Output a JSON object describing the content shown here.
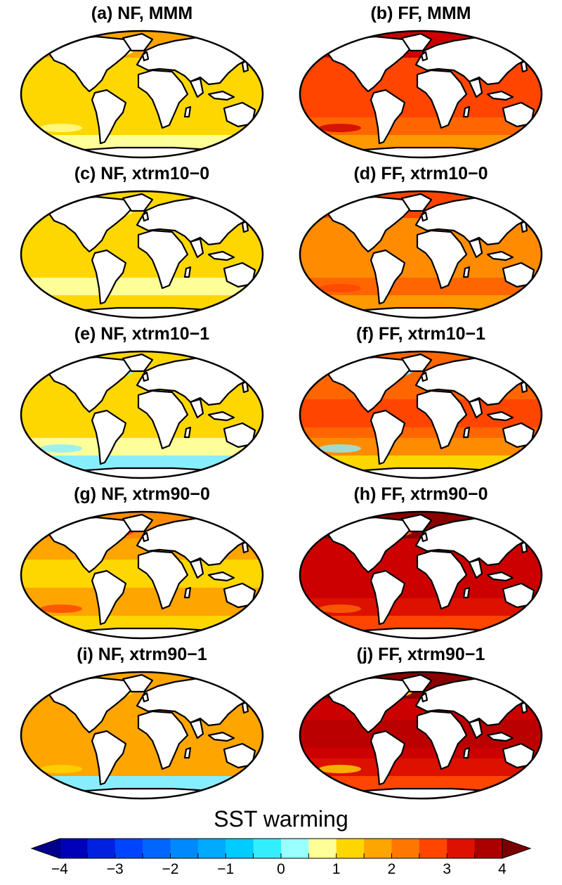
{
  "panels": [
    {
      "title": "(a) NF, MMM",
      "colors": {
        "base": "#ffd700",
        "tropics": "#ffd700",
        "north": "#ffa500",
        "south": "#ffd700",
        "antarctic": "#ffff99",
        "patch": "#ffff99"
      }
    },
    {
      "title": "(b) FF, MMM",
      "colors": {
        "base": "#ff4500",
        "tropics": "#ff4500",
        "north": "#cc0000",
        "south": "#ff6600",
        "antarctic": "#ff9900",
        "patch": "#cc0000"
      }
    },
    {
      "title": "(c) NF, xtrm10−0",
      "colors": {
        "base": "#ffd700",
        "tropics": "#ffd700",
        "north": "#ffd700",
        "south": "#ffff99",
        "antarctic": "#ffd700",
        "patch": "#ffff99"
      }
    },
    {
      "title": "(d) FF, xtrm10−0",
      "colors": {
        "base": "#ff8c00",
        "tropics": "#ff8c00",
        "north": "#ff4500",
        "south": "#ff6600",
        "antarctic": "#ff9900",
        "patch": "#ff4500"
      }
    },
    {
      "title": "(e) NF, xtrm10−1",
      "colors": {
        "base": "#ffd700",
        "tropics": "#ffd700",
        "north": "#ffd700",
        "south": "#ffff99",
        "antarctic": "#88eeff",
        "patch": "#88eeff"
      }
    },
    {
      "title": "(f) FF, xtrm10−1",
      "colors": {
        "base": "#ff6600",
        "tropics": "#ff4500",
        "north": "#ff6600",
        "south": "#ff8c00",
        "antarctic": "#ffd700",
        "patch": "#88eeff"
      }
    },
    {
      "title": "(g) NF, xtrm90−0",
      "colors": {
        "base": "#ffa500",
        "tropics": "#ffd700",
        "north": "#ff8c00",
        "south": "#ffa500",
        "antarctic": "#ffd700",
        "patch": "#ff4500"
      }
    },
    {
      "title": "(h) FF, xtrm90−0",
      "colors": {
        "base": "#cc0000",
        "tropics": "#cc0000",
        "north": "#8b0000",
        "south": "#dd1100",
        "antarctic": "#ff4500",
        "patch": "#ff6600"
      }
    },
    {
      "title": "(i) NF, xtrm90−1",
      "colors": {
        "base": "#ffa500",
        "tropics": "#ffa500",
        "north": "#ffa500",
        "south": "#ffa500",
        "antarctic": "#88eeff",
        "patch": "#ffd700"
      }
    },
    {
      "title": "(j) FF, xtrm90−1",
      "colors": {
        "base": "#cc0000",
        "tropics": "#bb0000",
        "north": "#8b0000",
        "south": "#dd1100",
        "antarctic": "#ff4500",
        "patch": "#ffd700"
      }
    }
  ],
  "land_color": "#ffffff",
  "coast_color": "#000000",
  "colorbar": {
    "title": "SST warming",
    "tick_labels": [
      "−4",
      "−3",
      "−2",
      "−1",
      "0",
      "1",
      "2",
      "3",
      "4"
    ],
    "range": [
      -4,
      4
    ],
    "step": 0.5,
    "under_color": "#00008b",
    "over_color": "#7a0000",
    "colors": [
      "#0000b8",
      "#0022e0",
      "#0044ff",
      "#0066ff",
      "#0088ff",
      "#00aaff",
      "#00ccff",
      "#33eeff",
      "#99ffff",
      "#ffff99",
      "#ffd700",
      "#ffa500",
      "#ff7700",
      "#ff4500",
      "#dd1100",
      "#aa0000"
    ]
  }
}
